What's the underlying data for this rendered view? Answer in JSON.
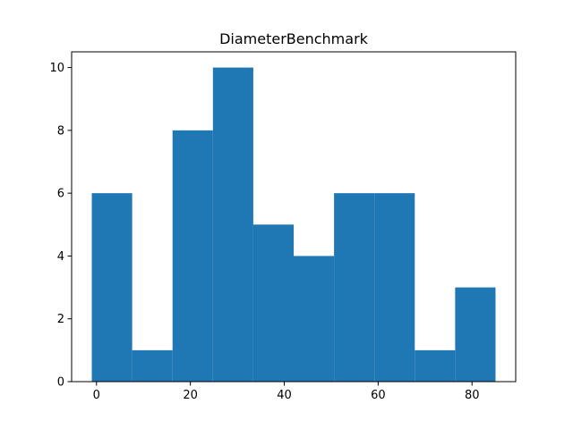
{
  "chart_data": {
    "type": "bar",
    "title": "DiameterBenchmark",
    "xlabel": "",
    "ylabel": "",
    "bins": [
      {
        "x0": -1,
        "x1": 7.6,
        "count": 6
      },
      {
        "x0": 7.6,
        "x1": 16.2,
        "count": 1
      },
      {
        "x0": 16.2,
        "x1": 24.8,
        "count": 8
      },
      {
        "x0": 24.8,
        "x1": 33.4,
        "count": 10
      },
      {
        "x0": 33.4,
        "x1": 42.0,
        "count": 5
      },
      {
        "x0": 42.0,
        "x1": 50.6,
        "count": 4
      },
      {
        "x0": 50.6,
        "x1": 59.2,
        "count": 6
      },
      {
        "x0": 59.2,
        "x1": 67.8,
        "count": 6
      },
      {
        "x0": 67.8,
        "x1": 76.4,
        "count": 1
      },
      {
        "x0": 76.4,
        "x1": 85.0,
        "count": 3
      }
    ],
    "xlim": [
      -5.3,
      89.3
    ],
    "ylim": [
      0,
      10.5
    ],
    "xticks": [
      0,
      20,
      40,
      60,
      80
    ],
    "yticks": [
      0,
      2,
      4,
      6,
      8,
      10
    ],
    "bar_color": "#1f77b4",
    "grid": false,
    "legend": "none"
  }
}
